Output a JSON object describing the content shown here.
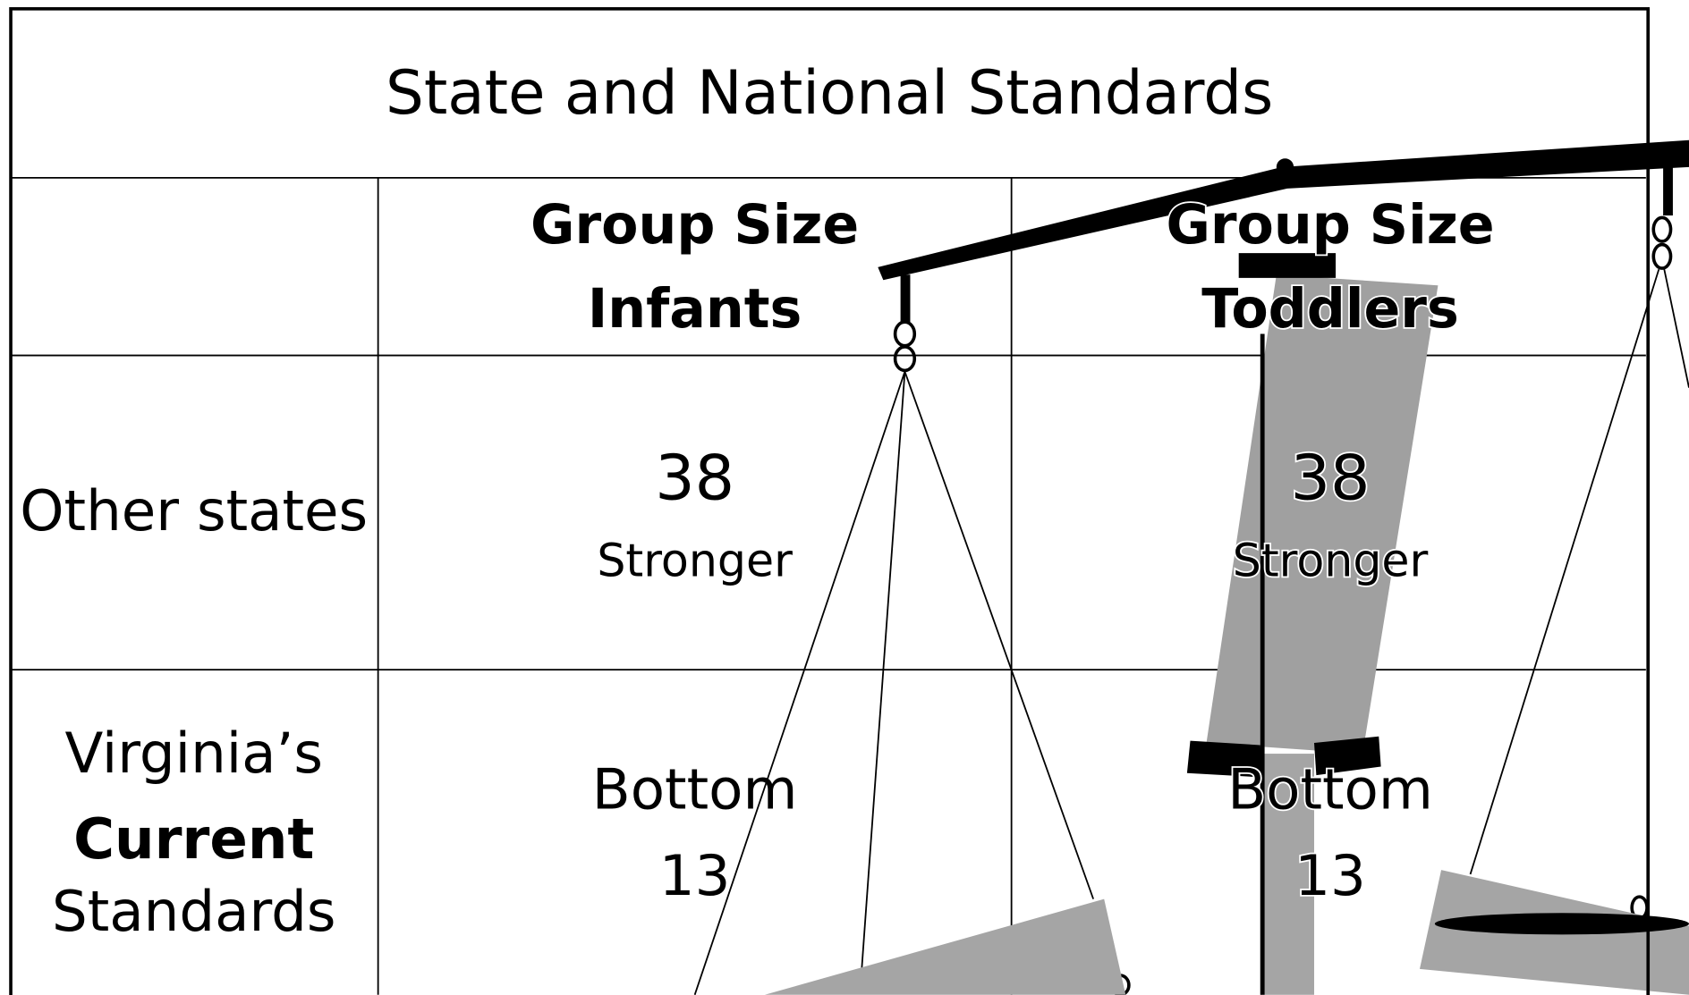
{
  "title": "State and National Standards",
  "table": {
    "header": [
      [
        "Group Size",
        "Infants"
      ],
      [
        "Group Size",
        "Toddlers"
      ]
    ],
    "rows": [
      {
        "label": [
          "Other states"
        ],
        "cells": [
          [
            38,
            "Stronger"
          ],
          [
            38,
            "Stronger"
          ]
        ]
      },
      {
        "label": [
          "Virginia’s",
          "Current",
          "Standards"
        ],
        "cells": [
          [
            "Bottom",
            13
          ],
          [
            "Bottom",
            13
          ]
        ]
      }
    ]
  }
}
